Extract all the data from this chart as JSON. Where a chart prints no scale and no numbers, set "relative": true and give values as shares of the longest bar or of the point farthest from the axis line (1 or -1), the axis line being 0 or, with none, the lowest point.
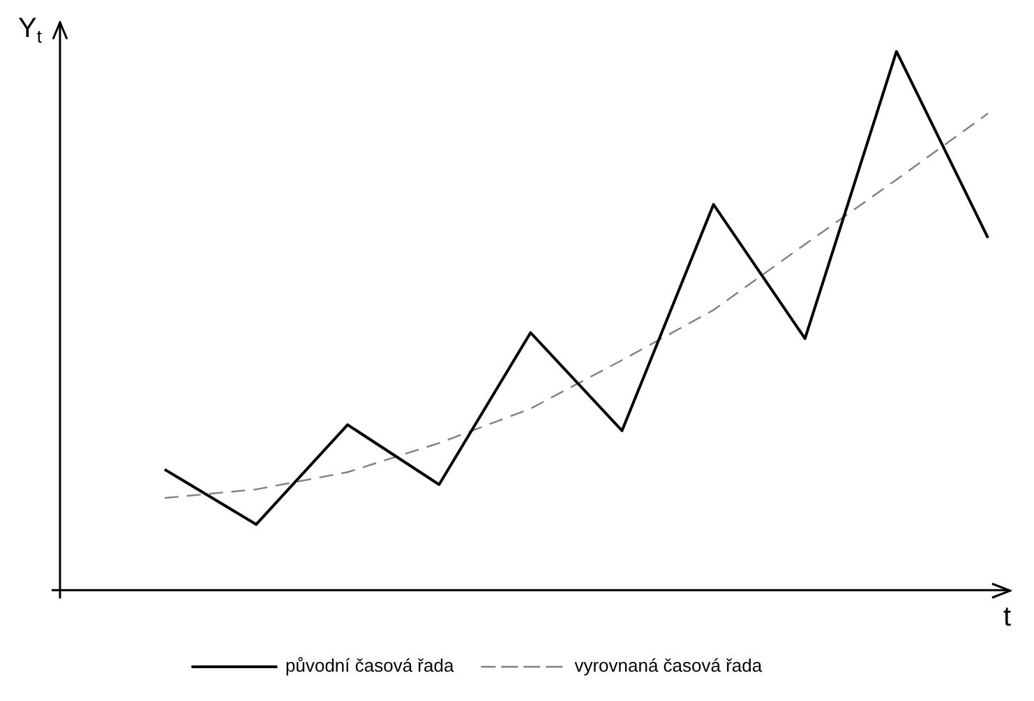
{
  "chart_data": {
    "type": "line",
    "relative": true,
    "xlabel": "t",
    "ylabel": "Y$_{t}$",
    "categories": [
      null,
      null,
      null,
      null,
      null,
      null,
      null,
      null,
      null,
      null
    ],
    "marker": "none",
    "legend": "bottom",
    "series": [
      {
        "name": "původní časová řada",
        "color": "#000000",
        "line_style": "solid",
        "values": [
          0.224,
          0.122,
          0.307,
          0.196,
          0.478,
          0.296,
          0.716,
          0.467,
          1,
          0.654
        ]
      },
      {
        "name": "vyrovnaná časová řada",
        "color": "#808080",
        "line_style": "dashed",
        "values": [
          0.171,
          0.187,
          0.219,
          0.273,
          0.337,
          0.427,
          0.52,
          0.642,
          0.762,
          0.885
        ]
      }
    ]
  }
}
